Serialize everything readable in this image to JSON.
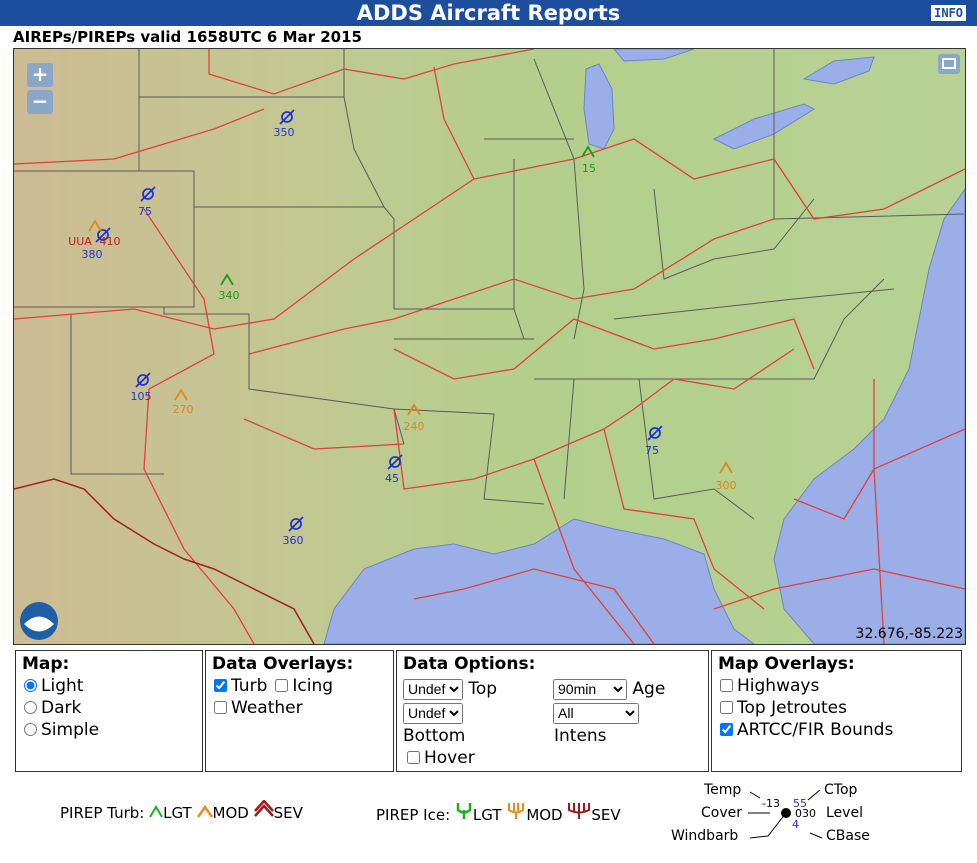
{
  "header": {
    "title": "ADDS Aircraft Reports",
    "info": "INFO"
  },
  "subtitle": "AIREPs/PIREPs valid 1658UTC 6 Mar 2015",
  "map": {
    "zoom_in": "+",
    "zoom_out": "−",
    "coords": "32.676,-85.223",
    "reports": [
      "350",
      "75",
      "UUA",
      "410",
      "380",
      "340",
      "15",
      "105",
      "270",
      "240",
      "45",
      "360",
      "75",
      "300"
    ]
  },
  "panels": {
    "map": {
      "title": "Map:",
      "options": [
        "Light",
        "Dark",
        "Simple"
      ],
      "selected": 0
    },
    "data_overlays": {
      "title": "Data Overlays:",
      "options": [
        {
          "label": "Turb",
          "checked": true
        },
        {
          "label": "Icing",
          "checked": false
        },
        {
          "label": "Weather",
          "checked": false
        }
      ]
    },
    "data_options": {
      "title": "Data Options:",
      "top_select": "Undef",
      "top": "Top",
      "bottom_select": "Undef",
      "bottom": "Bottom",
      "age_select": "90min",
      "age": "Age",
      "intens_select": "All",
      "intens": "Intens",
      "hover": "Hover",
      "hover_checked": false
    },
    "map_overlays": {
      "title": "Map Overlays:",
      "options": [
        {
          "label": "Highways",
          "checked": false
        },
        {
          "label": "Top Jetroutes",
          "checked": false
        },
        {
          "label": "ARTCC/FIR Bounds",
          "checked": true
        }
      ]
    }
  },
  "legend": {
    "turb": "PIREP Turb:",
    "turb_levels": [
      "LGT",
      "MOD",
      "SEV"
    ],
    "ice": "PIREP Ice:",
    "ice_levels": [
      "LGT",
      "MOD",
      "SEV"
    ],
    "station": {
      "temp": "Temp",
      "cover": "Cover",
      "windbarb": "Windbarb",
      "ctop": "CTop",
      "level": "Level",
      "cbase": "CBase",
      "temp_value": "-13",
      "ctop_value": "55",
      "level_value": "030",
      "cbase_value": "4"
    }
  }
}
